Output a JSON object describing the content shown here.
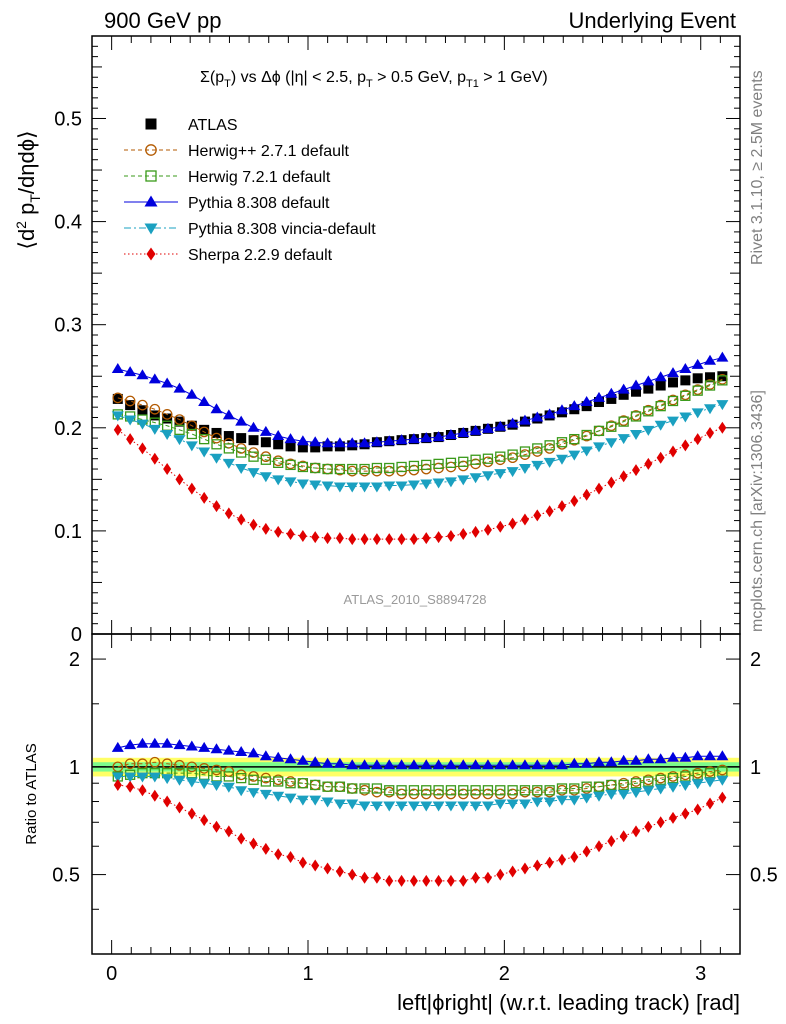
{
  "header": {
    "left": "900 GeV pp",
    "right": "Underlying Event"
  },
  "side_labels": {
    "rivet": "Rivet 3.1.10, ≥ 2.5M events",
    "mcplots": "mcplots.cern.ch [arXiv:1306.3436]"
  },
  "analysis_tag": "ATLAS_2010_S8894728",
  "top_title": {
    "main": "Σ(p",
    "sub1": "T",
    "mid": ") vs Δϕ (|η| < 2.5, p",
    "sub2": "T",
    "mid2": " > 0.5 GeV, p",
    "sub3": "T1",
    "end": " > 1 GeV)"
  },
  "ylabel_top": {
    "pre": "⟨d",
    "sup": "2",
    "mid": " p",
    "sub": "T",
    "end": "/dηdϕ⟩"
  },
  "ylabel_ratio": "Ratio to ATLAS",
  "xlabel": "left|ϕright| (w.r.t. leading track) [rad]",
  "x_ticks": [
    "0",
    "1",
    "2",
    "3"
  ],
  "y_ticks_top": [
    "0.1",
    "0.2",
    "0.3",
    "0.4",
    "0.5"
  ],
  "y_tick_zero": "0",
  "y_ticks_ratio_left": [
    "0.5",
    "1",
    "2"
  ],
  "y_ticks_ratio_right": [
    "0.5",
    "1",
    "2"
  ],
  "chart_data": {
    "type": "scatter",
    "x": [
      0.0314,
      0.0942,
      0.157,
      0.2199,
      0.2827,
      0.3456,
      0.4084,
      0.4712,
      0.5341,
      0.5969,
      0.6597,
      0.7226,
      0.7854,
      0.8482,
      0.9111,
      0.9739,
      1.0367,
      1.0996,
      1.1624,
      1.2252,
      1.2881,
      1.3509,
      1.4137,
      1.4765,
      1.5394,
      1.6022,
      1.665,
      1.7279,
      1.7907,
      1.8535,
      1.9164,
      1.9792,
      2.042,
      2.1049,
      2.1677,
      2.2305,
      2.2934,
      2.3562,
      2.419,
      2.4819,
      2.5447,
      2.6075,
      2.6704,
      2.7332,
      2.796,
      2.8588,
      2.9217,
      2.9845,
      3.0473,
      3.1102
    ],
    "xlim": [
      -0.1,
      3.2
    ],
    "ylim_top": [
      0,
      0.58
    ],
    "ylim_ratio": [
      0.3,
      2.35
    ],
    "ratio_ref_band": {
      "inner": 0.03,
      "outer": 0.06,
      "inner_color": "#7cfc8c",
      "outer_color": "#ffff66"
    },
    "series": [
      {
        "name": "ATLAS",
        "color": "#000000",
        "marker": "square-filled",
        "line": "none",
        "values": [
          0.228,
          0.222,
          0.217,
          0.212,
          0.209,
          0.206,
          0.202,
          0.198,
          0.195,
          0.192,
          0.19,
          0.188,
          0.186,
          0.184,
          0.182,
          0.181,
          0.181,
          0.182,
          0.182,
          0.183,
          0.184,
          0.186,
          0.187,
          0.188,
          0.189,
          0.19,
          0.191,
          0.193,
          0.195,
          0.197,
          0.199,
          0.201,
          0.203,
          0.206,
          0.209,
          0.212,
          0.215,
          0.218,
          0.221,
          0.225,
          0.228,
          0.232,
          0.235,
          0.238,
          0.241,
          0.244,
          0.246,
          0.248,
          0.249,
          0.25
        ],
        "ratio": [
          1.0,
          1.0,
          1.0,
          1.0,
          1.0,
          1.0,
          1.0,
          1.0,
          1.0,
          1.0,
          1.0,
          1.0,
          1.0,
          1.0,
          1.0,
          1.0,
          1.0,
          1.0,
          1.0,
          1.0,
          1.0,
          1.0,
          1.0,
          1.0,
          1.0,
          1.0,
          1.0,
          1.0,
          1.0,
          1.0,
          1.0,
          1.0,
          1.0,
          1.0,
          1.0,
          1.0,
          1.0,
          1.0,
          1.0,
          1.0,
          1.0,
          1.0,
          1.0,
          1.0,
          1.0,
          1.0,
          1.0,
          1.0,
          1.0,
          1.0
        ]
      },
      {
        "name": "Herwig++ 2.7.1 default",
        "color": "#b35a00",
        "marker": "circle-open",
        "line": "dashed",
        "values": [
          0.229,
          0.226,
          0.222,
          0.218,
          0.213,
          0.208,
          0.202,
          0.196,
          0.19,
          0.185,
          0.18,
          0.176,
          0.172,
          0.168,
          0.165,
          0.163,
          0.161,
          0.16,
          0.159,
          0.158,
          0.158,
          0.158,
          0.158,
          0.158,
          0.159,
          0.16,
          0.161,
          0.162,
          0.163,
          0.165,
          0.167,
          0.169,
          0.171,
          0.174,
          0.177,
          0.18,
          0.184,
          0.188,
          0.192,
          0.197,
          0.202,
          0.207,
          0.212,
          0.217,
          0.222,
          0.227,
          0.232,
          0.237,
          0.242,
          0.247
        ],
        "ratio": [
          1.0,
          1.02,
          1.02,
          1.03,
          1.02,
          1.01,
          1.0,
          0.99,
          0.98,
          0.97,
          0.95,
          0.94,
          0.93,
          0.92,
          0.91,
          0.9,
          0.89,
          0.88,
          0.88,
          0.87,
          0.86,
          0.85,
          0.85,
          0.84,
          0.84,
          0.84,
          0.84,
          0.84,
          0.84,
          0.84,
          0.84,
          0.84,
          0.84,
          0.85,
          0.85,
          0.85,
          0.86,
          0.86,
          0.87,
          0.88,
          0.89,
          0.9,
          0.91,
          0.92,
          0.93,
          0.94,
          0.95,
          0.96,
          0.97,
          0.98
        ]
      },
      {
        "name": "Herwig 7.2.1 default",
        "color": "#3a9a1a",
        "marker": "square-open",
        "line": "dashed",
        "values": [
          0.213,
          0.211,
          0.208,
          0.205,
          0.202,
          0.198,
          0.194,
          0.189,
          0.184,
          0.18,
          0.176,
          0.172,
          0.169,
          0.166,
          0.164,
          0.162,
          0.161,
          0.16,
          0.16,
          0.16,
          0.16,
          0.161,
          0.161,
          0.162,
          0.163,
          0.164,
          0.165,
          0.166,
          0.167,
          0.169,
          0.17,
          0.172,
          0.174,
          0.177,
          0.18,
          0.183,
          0.186,
          0.189,
          0.193,
          0.197,
          0.201,
          0.206,
          0.211,
          0.216,
          0.221,
          0.226,
          0.231,
          0.236,
          0.241,
          0.246
        ],
        "ratio": [
          0.94,
          0.95,
          0.96,
          0.96,
          0.96,
          0.96,
          0.96,
          0.95,
          0.94,
          0.94,
          0.93,
          0.92,
          0.91,
          0.91,
          0.9,
          0.9,
          0.89,
          0.88,
          0.88,
          0.87,
          0.87,
          0.87,
          0.86,
          0.86,
          0.86,
          0.86,
          0.86,
          0.86,
          0.86,
          0.86,
          0.86,
          0.86,
          0.86,
          0.86,
          0.86,
          0.86,
          0.87,
          0.87,
          0.88,
          0.88,
          0.89,
          0.89,
          0.9,
          0.91,
          0.92,
          0.93,
          0.94,
          0.95,
          0.96,
          0.97
        ]
      },
      {
        "name": "Pythia 8.308 default",
        "color": "#0000dd",
        "marker": "triangle-up-filled",
        "line": "solid",
        "values": [
          0.257,
          0.254,
          0.251,
          0.247,
          0.243,
          0.238,
          0.232,
          0.225,
          0.218,
          0.212,
          0.206,
          0.2,
          0.196,
          0.192,
          0.189,
          0.187,
          0.186,
          0.185,
          0.185,
          0.185,
          0.185,
          0.186,
          0.187,
          0.188,
          0.189,
          0.19,
          0.191,
          0.193,
          0.195,
          0.197,
          0.199,
          0.201,
          0.204,
          0.207,
          0.21,
          0.213,
          0.217,
          0.221,
          0.225,
          0.229,
          0.233,
          0.237,
          0.241,
          0.245,
          0.249,
          0.253,
          0.257,
          0.261,
          0.265,
          0.268
        ],
        "ratio": [
          1.13,
          1.15,
          1.16,
          1.16,
          1.16,
          1.15,
          1.14,
          1.13,
          1.12,
          1.11,
          1.1,
          1.09,
          1.07,
          1.06,
          1.05,
          1.04,
          1.03,
          1.02,
          1.02,
          1.01,
          1.01,
          1.01,
          1.01,
          1.01,
          1.01,
          1.01,
          1.01,
          1.01,
          1.01,
          1.01,
          1.01,
          1.01,
          1.01,
          1.01,
          1.01,
          1.01,
          1.01,
          1.02,
          1.02,
          1.03,
          1.03,
          1.04,
          1.04,
          1.05,
          1.05,
          1.06,
          1.06,
          1.07,
          1.07,
          1.07
        ]
      },
      {
        "name": "Pythia 8.308 vincia-default",
        "color": "#1aa0c0",
        "marker": "triangle-down-filled",
        "line": "dashdot",
        "values": [
          0.212,
          0.208,
          0.204,
          0.199,
          0.194,
          0.189,
          0.183,
          0.177,
          0.171,
          0.166,
          0.161,
          0.157,
          0.153,
          0.15,
          0.148,
          0.146,
          0.145,
          0.144,
          0.143,
          0.143,
          0.143,
          0.143,
          0.144,
          0.144,
          0.145,
          0.146,
          0.147,
          0.148,
          0.15,
          0.152,
          0.154,
          0.156,
          0.158,
          0.161,
          0.164,
          0.167,
          0.17,
          0.174,
          0.178,
          0.182,
          0.186,
          0.19,
          0.194,
          0.198,
          0.203,
          0.207,
          0.211,
          0.215,
          0.219,
          0.223
        ],
        "ratio": [
          0.94,
          0.94,
          0.94,
          0.94,
          0.93,
          0.92,
          0.91,
          0.9,
          0.89,
          0.88,
          0.86,
          0.85,
          0.84,
          0.83,
          0.82,
          0.81,
          0.81,
          0.8,
          0.79,
          0.79,
          0.78,
          0.78,
          0.78,
          0.78,
          0.78,
          0.78,
          0.78,
          0.78,
          0.78,
          0.78,
          0.78,
          0.79,
          0.79,
          0.79,
          0.8,
          0.8,
          0.81,
          0.81,
          0.82,
          0.83,
          0.84,
          0.84,
          0.85,
          0.86,
          0.87,
          0.88,
          0.89,
          0.9,
          0.91,
          0.92
        ]
      },
      {
        "name": "Sherpa 2.2.9 default",
        "color": "#e00000",
        "marker": "diamond-filled",
        "line": "dotted",
        "values": [
          0.198,
          0.189,
          0.18,
          0.17,
          0.16,
          0.15,
          0.141,
          0.132,
          0.124,
          0.117,
          0.111,
          0.106,
          0.102,
          0.099,
          0.097,
          0.095,
          0.094,
          0.093,
          0.093,
          0.092,
          0.092,
          0.092,
          0.092,
          0.092,
          0.092,
          0.093,
          0.094,
          0.095,
          0.097,
          0.099,
          0.101,
          0.104,
          0.107,
          0.111,
          0.115,
          0.119,
          0.124,
          0.129,
          0.135,
          0.141,
          0.147,
          0.153,
          0.159,
          0.165,
          0.171,
          0.177,
          0.183,
          0.189,
          0.195,
          0.2
        ],
        "ratio": [
          0.89,
          0.88,
          0.86,
          0.83,
          0.8,
          0.77,
          0.74,
          0.71,
          0.68,
          0.66,
          0.63,
          0.61,
          0.59,
          0.57,
          0.56,
          0.54,
          0.53,
          0.52,
          0.51,
          0.5,
          0.49,
          0.49,
          0.48,
          0.48,
          0.48,
          0.48,
          0.48,
          0.48,
          0.48,
          0.49,
          0.49,
          0.5,
          0.51,
          0.52,
          0.53,
          0.54,
          0.55,
          0.56,
          0.58,
          0.6,
          0.62,
          0.64,
          0.66,
          0.68,
          0.7,
          0.72,
          0.74,
          0.76,
          0.79,
          0.82
        ]
      }
    ]
  }
}
